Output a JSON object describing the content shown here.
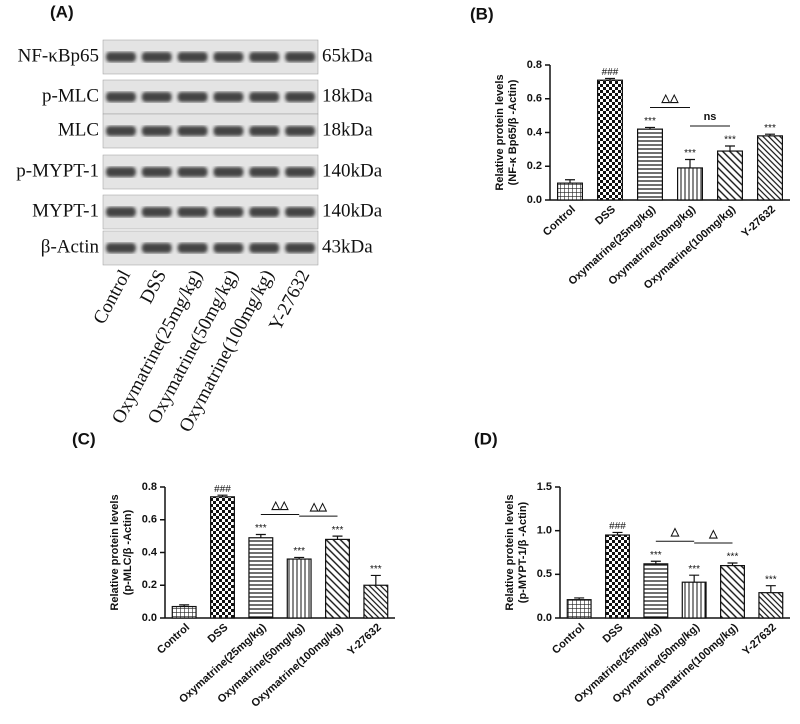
{
  "blot": {
    "label": "(A)",
    "rows": [
      {
        "name": "NF-κBp65",
        "size": "65kDa"
      },
      {
        "name": "p-MLC",
        "size": "18kDa"
      },
      {
        "name": "MLC",
        "size": "18kDa"
      },
      {
        "name": "p-MYPT-1",
        "size": "140kDa"
      },
      {
        "name": "MYPT-1",
        "size": "140kDa"
      },
      {
        "name": "β-Actin",
        "size": "43kDa"
      }
    ],
    "lanes": [
      "Control",
      "DSS",
      "Oxymatrine(25mg/kg)",
      "Oxymatrine(50mg/kg)",
      "Oxymatrine(100mg/kg)",
      "Y-27632"
    ]
  },
  "chart_data": [
    {
      "type": "bar",
      "label": "(B)",
      "ylabel": [
        "Relative protein levels",
        "(NF-κ Bp65/β -Actin)"
      ],
      "categories": [
        "Control",
        "DSS",
        "Oxymatrine(25mg/kg)",
        "Oxymatrine(50mg/kg)",
        "Oxymatrine(100mg/kg)",
        "Y-27632"
      ],
      "values": [
        0.1,
        0.71,
        0.42,
        0.19,
        0.29,
        0.38
      ],
      "errors": [
        0.02,
        0.01,
        0.01,
        0.05,
        0.03,
        0.01
      ],
      "annotations": [
        null,
        "###",
        "***",
        "***",
        "***",
        "***"
      ],
      "bracket_labels": [
        "△△",
        "ns"
      ],
      "ylim": [
        0,
        0.8
      ],
      "yticks": [
        {
          "value": 0,
          "label": "0.0"
        },
        {
          "value": 0.2,
          "label": "0.2"
        },
        {
          "value": 0.4,
          "label": "0.4"
        },
        {
          "value": 0.6,
          "label": "0.6"
        },
        {
          "value": 0.8,
          "label": "0.8"
        }
      ]
    },
    {
      "type": "bar",
      "label": "(C)",
      "ylabel": [
        "Relative protein levels",
        "(p-MLC/β -Actin)"
      ],
      "categories": [
        "Control",
        "DSS",
        "Oxymatrine(25mg/kg)",
        "Oxymatrine(50mg/kg)",
        "Oxymatrine(100mg/kg)",
        "Y-27632"
      ],
      "values": [
        0.07,
        0.74,
        0.49,
        0.36,
        0.48,
        0.2
      ],
      "errors": [
        0.01,
        0.01,
        0.02,
        0.01,
        0.02,
        0.06
      ],
      "annotations": [
        null,
        "###",
        "***",
        "***",
        "***",
        "***"
      ],
      "bracket_labels": [
        "△△",
        "△△"
      ],
      "ylim": [
        0,
        0.8
      ],
      "yticks": [
        {
          "value": 0,
          "label": "0.0"
        },
        {
          "value": 0.2,
          "label": "0.2"
        },
        {
          "value": 0.4,
          "label": "0.4"
        },
        {
          "value": 0.6,
          "label": "0.6"
        },
        {
          "value": 0.8,
          "label": "0.8"
        }
      ]
    },
    {
      "type": "bar",
      "label": "(D)",
      "ylabel": [
        "Relative protein levels",
        "(p-MYPT-1/β -Actin)"
      ],
      "categories": [
        "Control",
        "DSS",
        "Oxymatrine(25mg/kg)",
        "Oxymatrine(50mg/kg)",
        "Oxymatrine(100mg/kg)",
        "Y-27632"
      ],
      "values": [
        0.21,
        0.95,
        0.62,
        0.41,
        0.6,
        0.29
      ],
      "errors": [
        0.02,
        0.03,
        0.03,
        0.08,
        0.03,
        0.08
      ],
      "annotations": [
        null,
        "###",
        "***",
        "***",
        "***",
        "***"
      ],
      "bracket_labels": [
        "△",
        "△"
      ],
      "ylim": [
        0,
        1.5
      ],
      "yticks": [
        {
          "value": 0,
          "label": "0.0"
        },
        {
          "value": 0.5,
          "label": "0.5"
        },
        {
          "value": 1.0,
          "label": "1.0"
        },
        {
          "value": 1.5,
          "label": "1.5"
        }
      ]
    }
  ]
}
